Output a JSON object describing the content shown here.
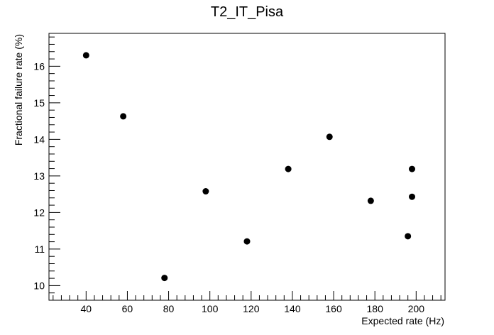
{
  "chart_data": {
    "type": "scatter",
    "title": "T2_IT_Pisa",
    "xlabel": "Expected rate (Hz)",
    "ylabel": "Fractional failure rate (%)",
    "xlim": [
      22,
      214
    ],
    "ylim": [
      9.6,
      16.9
    ],
    "x_ticks": [
      40,
      60,
      80,
      100,
      120,
      140,
      160,
      180,
      200
    ],
    "y_ticks": [
      10,
      11,
      12,
      13,
      14,
      15,
      16
    ],
    "grid": false,
    "legend": "none",
    "marker_color": "#000000",
    "points": [
      {
        "x": 40,
        "y": 16.3
      },
      {
        "x": 58,
        "y": 14.63
      },
      {
        "x": 78,
        "y": 10.21
      },
      {
        "x": 98,
        "y": 12.58
      },
      {
        "x": 118,
        "y": 11.21
      },
      {
        "x": 138,
        "y": 13.19
      },
      {
        "x": 158,
        "y": 14.07
      },
      {
        "x": 178,
        "y": 12.32
      },
      {
        "x": 196,
        "y": 11.35
      },
      {
        "x": 198,
        "y": 13.19
      },
      {
        "x": 198,
        "y": 12.43
      }
    ]
  }
}
